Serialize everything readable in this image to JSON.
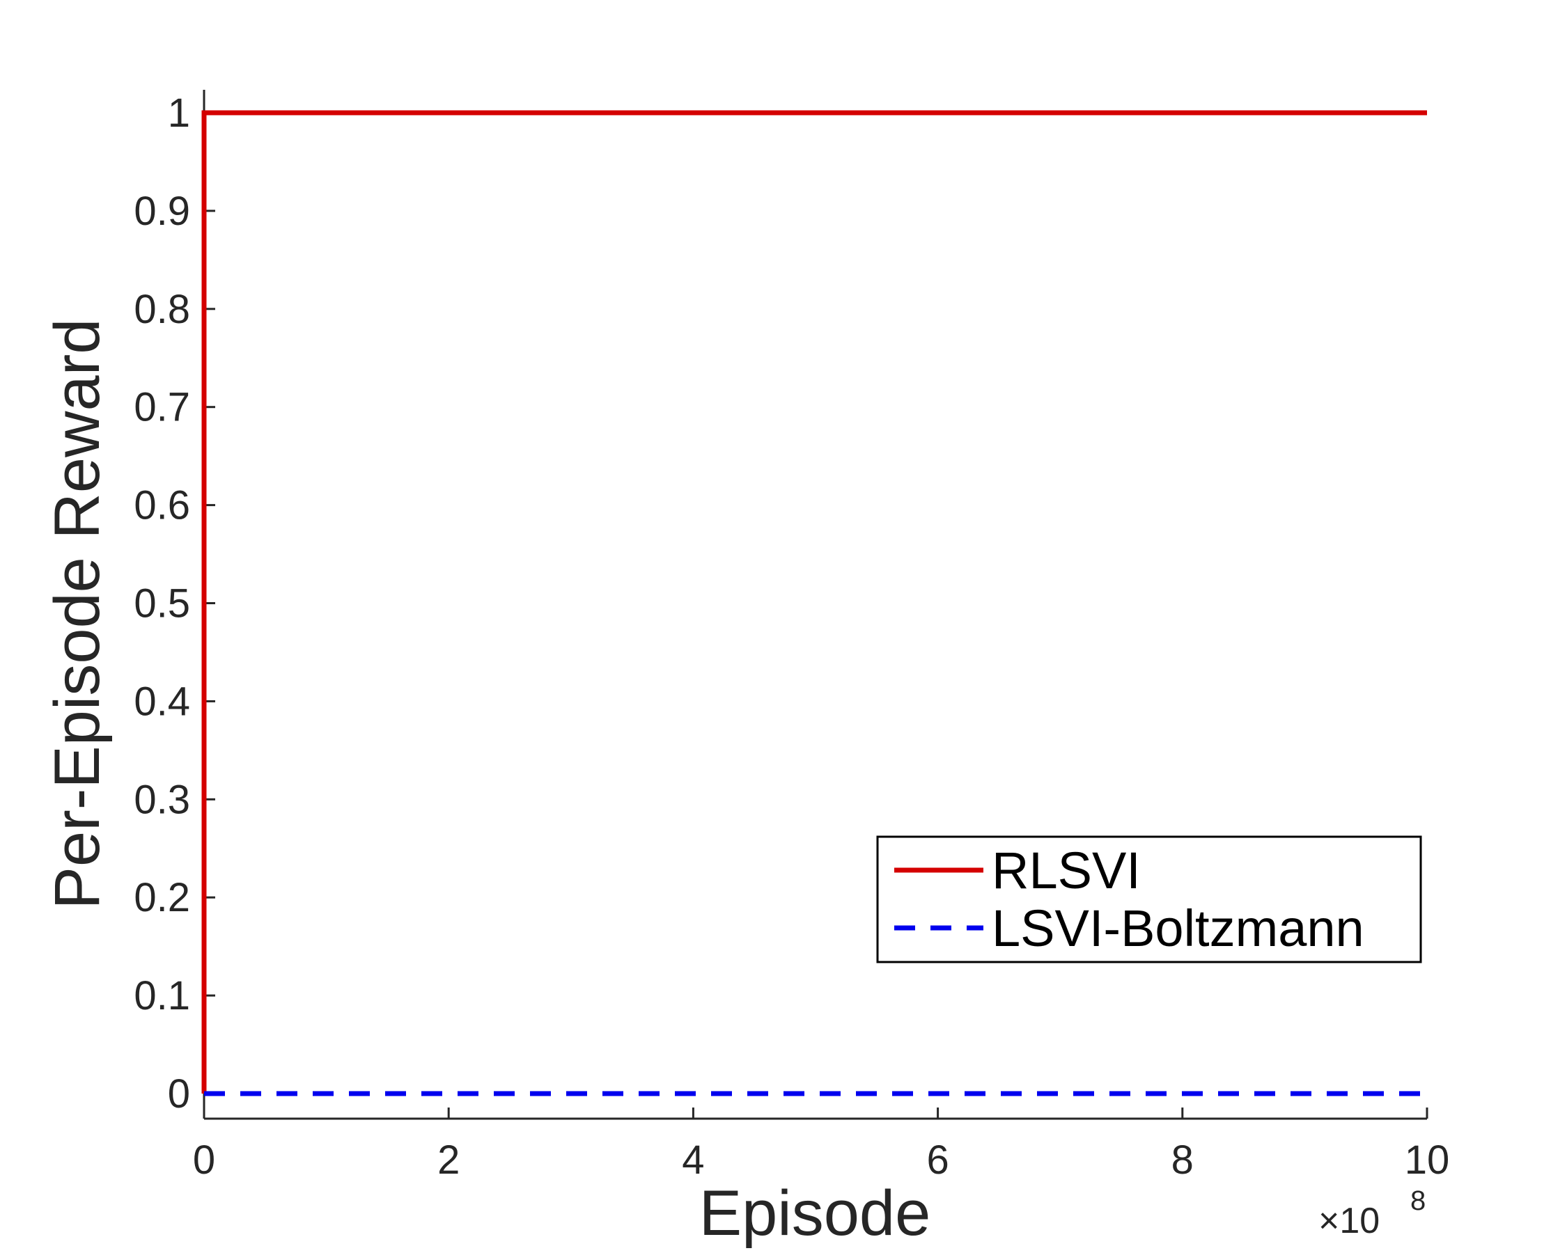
{
  "chart_data": {
    "type": "line",
    "xlabel": "Episode",
    "ylabel": "Per-Episode Reward",
    "x_multiplier_base": "×10",
    "x_multiplier_exponent": "8",
    "xlim": [
      0,
      10
    ],
    "ylim": [
      0,
      1
    ],
    "x_ticks": [
      "0",
      "2",
      "4",
      "6",
      "8",
      "10"
    ],
    "y_ticks": [
      "0",
      "0.1",
      "0.2",
      "0.3",
      "0.4",
      "0.5",
      "0.6",
      "0.7",
      "0.8",
      "0.9",
      "1"
    ],
    "grid": false,
    "legend_position": "bottom-right",
    "series": [
      {
        "name": "RLSVI",
        "color": "#d40000",
        "style": "solid",
        "x": [
          0,
          0,
          10
        ],
        "y": [
          0,
          1,
          1
        ]
      },
      {
        "name": "LSVI-Boltzmann",
        "color": "#0000ee",
        "style": "dashed",
        "x": [
          0,
          10
        ],
        "y": [
          0,
          0
        ]
      }
    ]
  }
}
